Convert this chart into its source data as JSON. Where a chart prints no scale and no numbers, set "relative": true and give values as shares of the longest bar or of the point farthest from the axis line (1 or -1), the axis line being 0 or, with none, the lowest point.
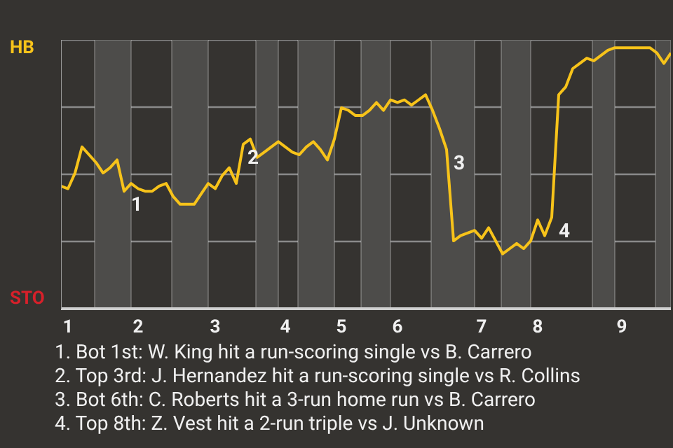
{
  "chart_data": {
    "type": "line",
    "relative": true,
    "categories": [
      null,
      "1",
      null,
      null,
      null,
      null,
      null,
      null,
      null,
      null,
      null,
      "2",
      null,
      null,
      null,
      null,
      null,
      null,
      null,
      null,
      null,
      null,
      "3",
      null,
      null,
      null,
      null,
      null,
      null,
      null,
      null,
      null,
      "4",
      null,
      null,
      null,
      null,
      null,
      null,
      null,
      "5",
      null,
      null,
      null,
      null,
      null,
      null,
      null,
      "6",
      null,
      null,
      null,
      null,
      null,
      null,
      null,
      null,
      null,
      null,
      null,
      "7",
      null,
      null,
      null,
      null,
      null,
      null,
      null,
      "8",
      null,
      null,
      null,
      null,
      null,
      null,
      null,
      null,
      null,
      null,
      null,
      "9",
      null,
      null,
      null,
      null,
      null,
      null,
      null
    ],
    "series": [
      {
        "color": "#f7c31a",
        "values": [
          0.47,
          0.46,
          0.52,
          0.62,
          0.59,
          0.56,
          0.52,
          0.54,
          0.57,
          0.45,
          0.48,
          0.46,
          0.45,
          0.45,
          0.47,
          0.48,
          0.43,
          0.4,
          0.4,
          0.4,
          0.44,
          0.48,
          0.46,
          0.51,
          0.54,
          0.48,
          0.63,
          0.65,
          0.58,
          0.6,
          0.62,
          0.64,
          0.62,
          0.6,
          0.59,
          0.62,
          0.64,
          0.61,
          0.57,
          0.65,
          0.77,
          0.76,
          0.74,
          0.74,
          0.76,
          0.79,
          0.76,
          0.8,
          0.79,
          0.8,
          0.78,
          0.8,
          0.82,
          0.76,
          0.69,
          0.61,
          0.26,
          0.28,
          0.29,
          0.3,
          0.27,
          0.31,
          0.26,
          0.21,
          0.23,
          0.25,
          0.23,
          0.26,
          0.34,
          0.28,
          0.35,
          0.82,
          0.85,
          0.92,
          0.94,
          0.96,
          0.95,
          0.97,
          0.99,
          1,
          1,
          1,
          1,
          1,
          1,
          0.98,
          0.94,
          0.98
        ]
      }
    ],
    "grid": "y",
    "marker": "none",
    "line_style": "solid",
    "annotations": [
      "HB",
      "STO",
      "1",
      "2",
      "3",
      "4",
      "1. Bot 1st: W. King hit a run-scoring single vs B. Carrero",
      "2. Top 3rd: J. Hernandez hit a run-scoring single vs R. Collins",
      "3. Bot 6th: C. Roberts hit a 3-run home run vs B. Carrero",
      "4. Top 8th: Z. Vest hit a 2-run triple vs J. Unknown"
    ]
  }
}
